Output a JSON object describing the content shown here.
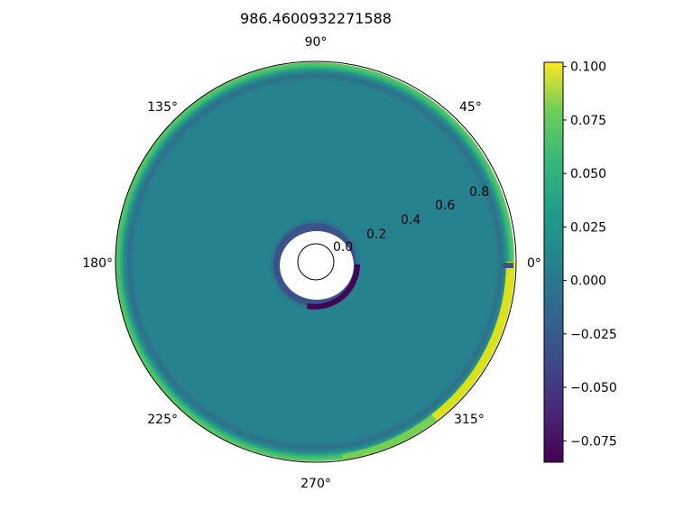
{
  "chart_data": {
    "type": "heatmap",
    "projection": "polar",
    "title": "986.4600932271588",
    "angular_ticks": [
      "0°",
      "45°",
      "90°",
      "135°",
      "180°",
      "225°",
      "270°",
      "315°"
    ],
    "radial_ticks": [
      "0.0",
      "0.2",
      "0.4",
      "0.6",
      "0.8"
    ],
    "colormap": "viridis",
    "colorbar": {
      "range": [
        -0.085,
        0.102
      ],
      "ticks": [
        {
          "value": 0.1,
          "label": "0.100"
        },
        {
          "value": 0.075,
          "label": "0.075"
        },
        {
          "value": 0.05,
          "label": "0.050"
        },
        {
          "value": 0.025,
          "label": "0.025"
        },
        {
          "value": 0.0,
          "label": "0.000"
        },
        {
          "value": -0.025,
          "label": "−0.025"
        },
        {
          "value": -0.05,
          "label": "−0.050"
        },
        {
          "value": -0.075,
          "label": "−0.075"
        }
      ]
    },
    "field": {
      "background_value": 0.0,
      "inner_hole_radius": 0.09,
      "inner_ring_value": -0.045,
      "outer_ring_value": 0.04,
      "outer_edge_value": 0.065,
      "wedge_near_0deg_value": 0.1
    }
  }
}
